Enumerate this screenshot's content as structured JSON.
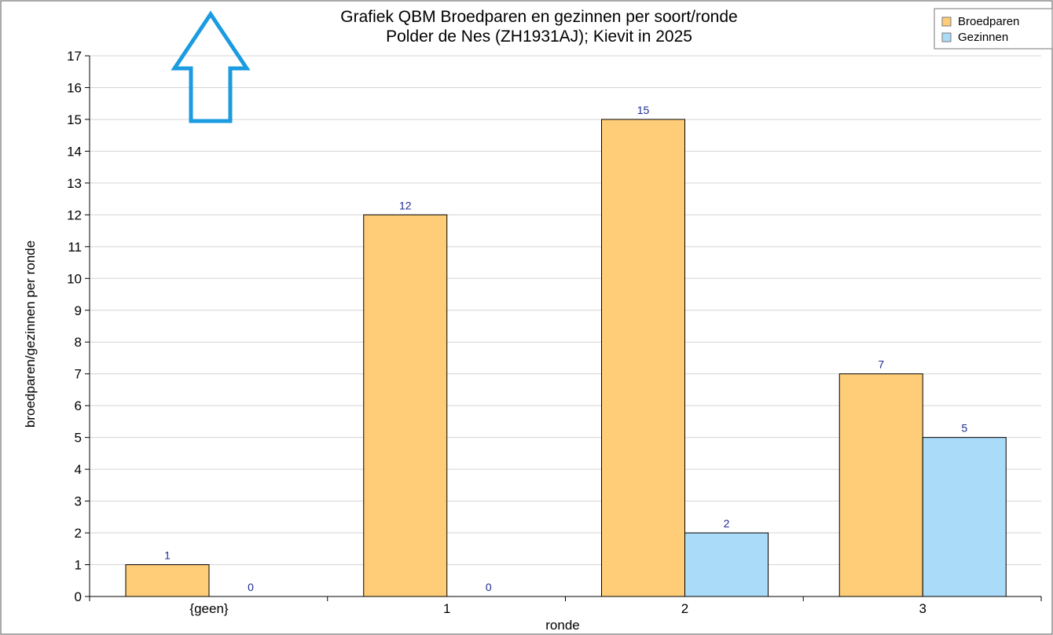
{
  "chart_data": {
    "type": "bar",
    "title_line1": "Grafiek QBM Broedparen en gezinnen per soort/ronde",
    "title_line2": "Polder de Nes (ZH1931AJ);  Kievit in 2025",
    "xlabel": "ronde",
    "ylabel": "broedparen/gezinnen per ronde",
    "ylim": [
      0,
      17
    ],
    "yticks": [
      0,
      1,
      2,
      3,
      4,
      5,
      6,
      7,
      8,
      9,
      10,
      11,
      12,
      13,
      14,
      15,
      16,
      17
    ],
    "categories": [
      "{geen}",
      "1",
      "2",
      "3"
    ],
    "series": [
      {
        "name": "Broedparen",
        "values": [
          1,
          12,
          15,
          7
        ],
        "color": "#ffcc77"
      },
      {
        "name": "Gezinnen",
        "values": [
          0,
          0,
          2,
          5
        ],
        "color": "#aadbf8"
      }
    ],
    "grid": true,
    "legend_position": "top-right"
  },
  "colors": {
    "axis": "#000000",
    "grid": "#d4d4d4",
    "data_label": "#1f2c8f",
    "arrow": "#1b9be0"
  },
  "annotation": {
    "icon": "up-arrow-icon"
  }
}
